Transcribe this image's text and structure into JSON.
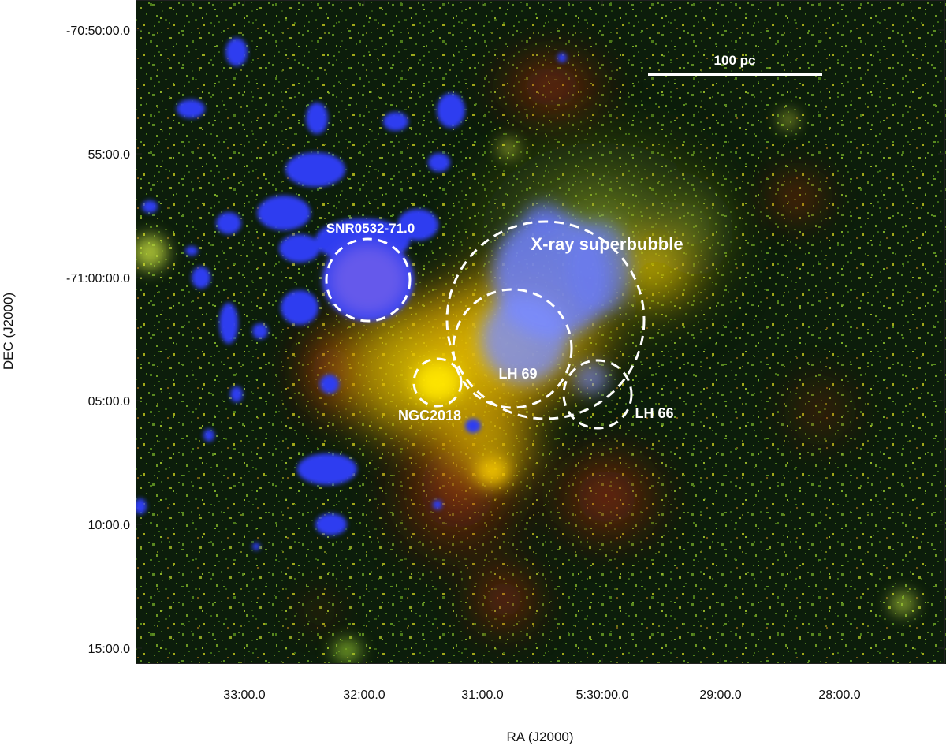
{
  "axes": {
    "x_title": "RA (J2000)",
    "y_title": "DEC (J2000)",
    "x_ticks": [
      "33:00.0",
      "32:00.0",
      "31:00.0",
      "5:30:00.0",
      "29:00.0",
      "28:00.0"
    ],
    "y_ticks": [
      "-70:50:00.0",
      "55:00.0",
      "-71:00:00.0",
      "05:00.0",
      "10:00.0",
      "15:00.0"
    ]
  },
  "annotations": {
    "scale_bar": "100 pc",
    "superbubble": "X-ray superbubble",
    "snr": "SNR0532-71.0",
    "lh69": "LH 69",
    "ngc2018": "NGC2018",
    "lh66": "LH 66"
  },
  "colors": {
    "background": "#0b1a0a",
    "star_field": "#4a7a1a",
    "emission_yellow": "#e8c800",
    "emission_red": "#b82a10",
    "xray_blue": "#2e3cf0",
    "annotation": "#ffffff"
  }
}
